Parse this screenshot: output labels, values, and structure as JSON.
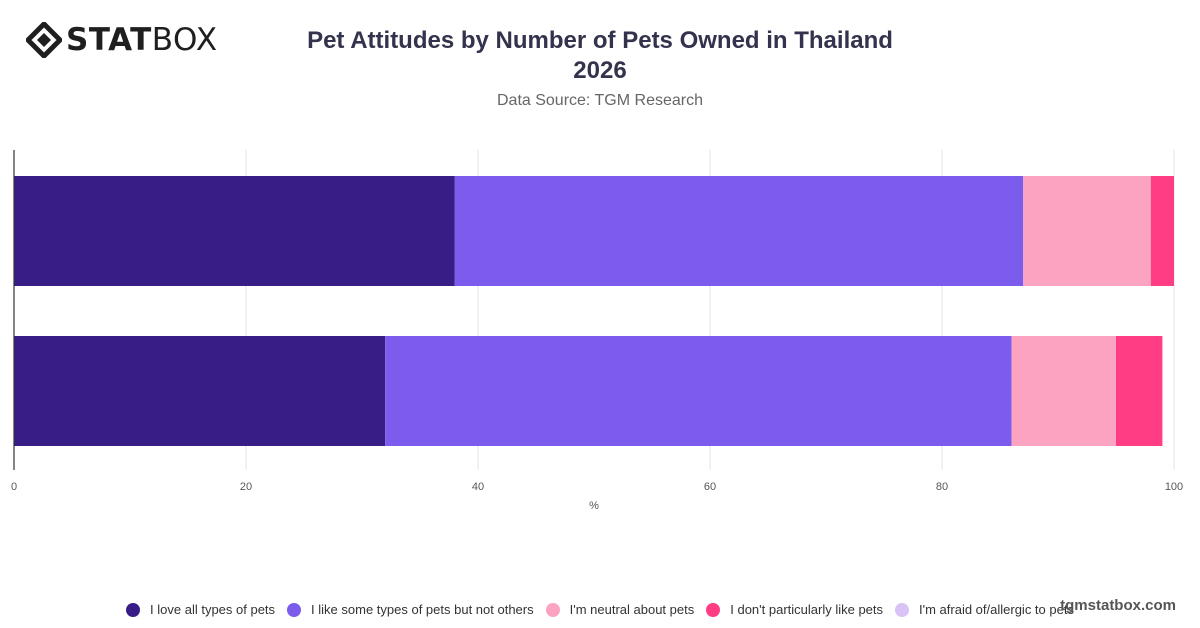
{
  "brand": {
    "name_bold": "STAT",
    "name_regular": "BOX",
    "watermark": "tgmstatbox.com"
  },
  "header": {
    "title_line1": "Pet Attitudes by Number of Pets Owned in Thailand",
    "title_line2": "2026",
    "subtitle": "Data Source: TGM Research"
  },
  "chart_data": {
    "type": "bar",
    "orientation": "horizontal",
    "stacked": true,
    "xlabel": "%",
    "xlim": [
      0,
      100
    ],
    "xticks": [
      0,
      20,
      40,
      60,
      80,
      100
    ],
    "grid": true,
    "legend_position": "bottom",
    "categories": [
      "",
      ""
    ],
    "series": [
      {
        "name": "I love all types of pets",
        "color": "#371d85",
        "values": [
          38,
          32
        ]
      },
      {
        "name": "I like some types of pets but not others",
        "color": "#7b5ced",
        "values": [
          49,
          54
        ]
      },
      {
        "name": "I'm neutral about pets",
        "color": "#fca3c2",
        "values": [
          11,
          9
        ]
      },
      {
        "name": "I don't particularly like pets",
        "color": "#ff3d85",
        "values": [
          2,
          4
        ]
      },
      {
        "name": "I'm afraid of/allergic to pets",
        "color": "#d9c2f5",
        "values": [
          0,
          0
        ]
      }
    ]
  }
}
